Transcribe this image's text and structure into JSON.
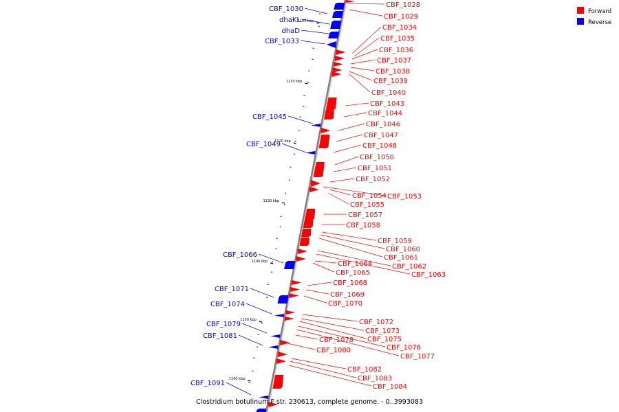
{
  "caption": "Clostridium botulinum F str. 230613, complete genome. - 0..3993083",
  "legend": [
    {
      "label": "Forward",
      "color": "#ff0000"
    },
    {
      "label": "Reverse",
      "color": "#0000ff"
    }
  ],
  "colors": {
    "forward": "#ff0000",
    "reverse": "#0000ff",
    "backbone": "#808080"
  },
  "ticks": [
    "1100 kbp",
    "1110 kbp",
    "1120 kbp",
    "1130 kbp",
    "1140 kbp",
    "1150 kbp",
    "1160 kbp"
  ],
  "forward_labels": [
    "CBF_1028",
    "CBF_1029",
    "CBF_1034",
    "CBF_1035",
    "CBF_1036",
    "CBF_1037",
    "CBF_1038",
    "CBF_1039",
    "CBF_1040",
    "CBF_1043",
    "CBF_1044",
    "CBF_1046",
    "CBF_1047",
    "CBF_1048",
    "CBF_1050",
    "CBF_1051",
    "CBF_1052",
    "CBF_1053",
    "CBF_1054",
    "CBF_1055",
    "CBF_1057",
    "CBF_1058",
    "CBF_1059",
    "CBF_1060",
    "CBF_1061",
    "CBF_1062",
    "CBF_1063",
    "CBF_1064",
    "CBF_1065",
    "CBF_1068",
    "CBF_1069",
    "CBF_1070",
    "CBF_1072",
    "CBF_1073",
    "CBF_1075",
    "CBF_1076",
    "CBF_1077",
    "CBF_1078",
    "CBF_1080",
    "CBF_1082",
    "CBF_1083",
    "CBF_1084"
  ],
  "reverse_labels": [
    "CBF_1030",
    "dhaKL",
    "dhaD",
    "CBF_1033",
    "CBF_1045",
    "CBF_1049",
    "CBF_1066",
    "CBF_1071",
    "CBF_1074",
    "CBF_1079",
    "CBF_1081",
    "CBF_1091"
  ]
}
